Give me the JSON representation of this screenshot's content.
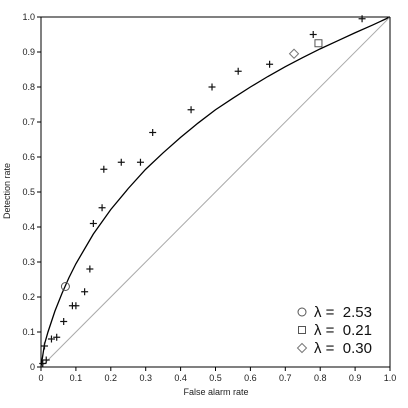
{
  "chart_data": {
    "type": "scatter",
    "title": "",
    "xlabel": "False alarm rate",
    "ylabel": "Detection rate",
    "xlim": [
      0,
      1
    ],
    "ylim": [
      0,
      1
    ],
    "x_ticks": [
      "0",
      "0.1",
      "0.2",
      "0.3",
      "0.4",
      "0.5",
      "0.6",
      "0.7",
      "0.8",
      "0.9",
      "1.0"
    ],
    "y_ticks": [
      "0",
      "0.1",
      "0.2",
      "0.3",
      "0.4",
      "0.5",
      "0.6",
      "0.7",
      "0.8",
      "0.9",
      "1.0"
    ],
    "grid": false,
    "legend_position": "bottom-right",
    "colors": {
      "points": "#111111",
      "curve": "#000000",
      "chance_line": "#aaaaaa",
      "axes": "#000000",
      "background": "#ffffff"
    },
    "series": [
      {
        "type": "scatter",
        "marker": "plus",
        "points": [
          {
            "x": 0.005,
            "y": 0.01
          },
          {
            "x": 0.01,
            "y": 0.06
          },
          {
            "x": 0.015,
            "y": 0.02
          },
          {
            "x": 0.03,
            "y": 0.08
          },
          {
            "x": 0.045,
            "y": 0.085
          },
          {
            "x": 0.065,
            "y": 0.13
          },
          {
            "x": 0.09,
            "y": 0.175
          },
          {
            "x": 0.1,
            "y": 0.175
          },
          {
            "x": 0.125,
            "y": 0.215
          },
          {
            "x": 0.14,
            "y": 0.28
          },
          {
            "x": 0.15,
            "y": 0.41
          },
          {
            "x": 0.175,
            "y": 0.455
          },
          {
            "x": 0.18,
            "y": 0.565
          },
          {
            "x": 0.23,
            "y": 0.585
          },
          {
            "x": 0.285,
            "y": 0.585
          },
          {
            "x": 0.32,
            "y": 0.67
          },
          {
            "x": 0.43,
            "y": 0.735
          },
          {
            "x": 0.49,
            "y": 0.8
          },
          {
            "x": 0.565,
            "y": 0.845
          },
          {
            "x": 0.655,
            "y": 0.865
          },
          {
            "x": 0.78,
            "y": 0.95
          },
          {
            "x": 0.92,
            "y": 0.995
          }
        ]
      },
      {
        "type": "scatter",
        "marker": "circle",
        "points": [
          {
            "x": 0.07,
            "y": 0.23
          }
        ]
      },
      {
        "type": "scatter",
        "marker": "square",
        "points": [
          {
            "x": 0.795,
            "y": 0.925
          }
        ]
      },
      {
        "type": "scatter",
        "marker": "diamond",
        "points": [
          {
            "x": 0.725,
            "y": 0.895
          }
        ]
      },
      {
        "type": "line",
        "style": "fitted-curve",
        "points": [
          {
            "x": 0.0,
            "y": 0.0
          },
          {
            "x": 0.01,
            "y": 0.065
          },
          {
            "x": 0.02,
            "y": 0.1
          },
          {
            "x": 0.04,
            "y": 0.16
          },
          {
            "x": 0.06,
            "y": 0.21
          },
          {
            "x": 0.08,
            "y": 0.255
          },
          {
            "x": 0.1,
            "y": 0.295
          },
          {
            "x": 0.15,
            "y": 0.38
          },
          {
            "x": 0.2,
            "y": 0.45
          },
          {
            "x": 0.25,
            "y": 0.51
          },
          {
            "x": 0.3,
            "y": 0.565
          },
          {
            "x": 0.35,
            "y": 0.612
          },
          {
            "x": 0.4,
            "y": 0.656
          },
          {
            "x": 0.45,
            "y": 0.697
          },
          {
            "x": 0.5,
            "y": 0.735
          },
          {
            "x": 0.55,
            "y": 0.768
          },
          {
            "x": 0.6,
            "y": 0.8
          },
          {
            "x": 0.65,
            "y": 0.83
          },
          {
            "x": 0.7,
            "y": 0.858
          },
          {
            "x": 0.75,
            "y": 0.884
          },
          {
            "x": 0.8,
            "y": 0.909
          },
          {
            "x": 0.85,
            "y": 0.932
          },
          {
            "x": 0.9,
            "y": 0.955
          },
          {
            "x": 0.95,
            "y": 0.977
          },
          {
            "x": 1.0,
            "y": 1.0
          }
        ]
      },
      {
        "type": "line",
        "style": "chance-diagonal",
        "points": [
          {
            "x": 0,
            "y": 0
          },
          {
            "x": 1,
            "y": 1
          }
        ]
      }
    ],
    "legend": [
      {
        "marker": "circle",
        "text": "λ =  2.53"
      },
      {
        "marker": "square",
        "text": "λ =  0.21"
      },
      {
        "marker": "diamond",
        "text": "λ =  0.30"
      }
    ]
  }
}
